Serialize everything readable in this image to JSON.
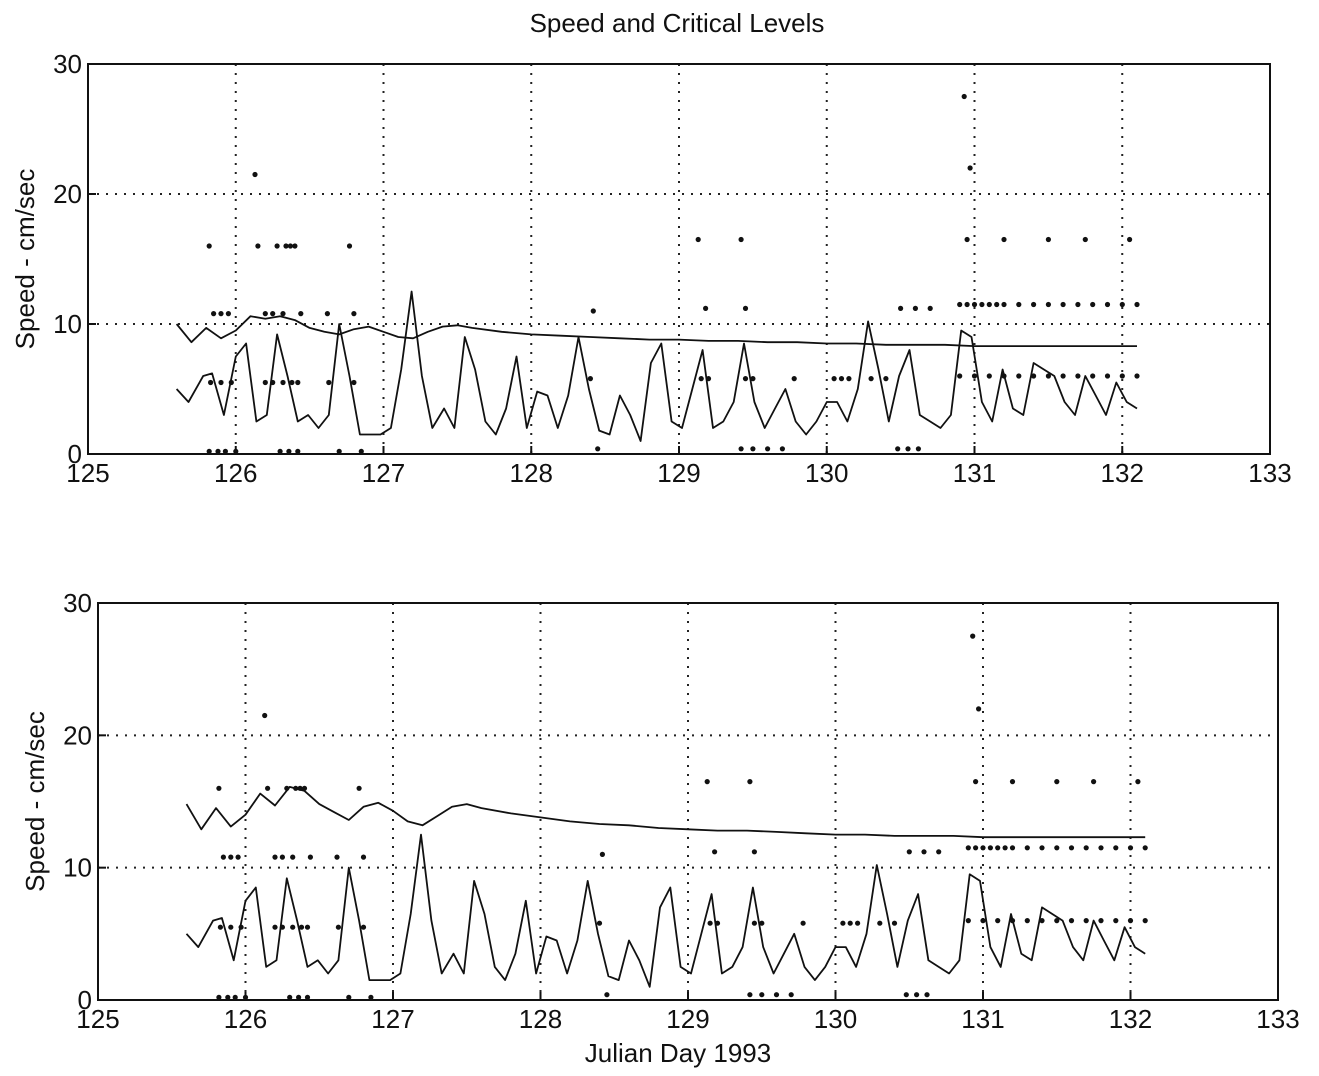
{
  "figure_title": "Speed and Critical Levels",
  "chart_data": [
    {
      "type": "line",
      "title": "Speed and Critical Levels",
      "xlabel": "",
      "ylabel": "Speed - cm/sec",
      "xlim": [
        125,
        133
      ],
      "ylim": [
        0,
        30
      ],
      "x_ticks": [
        "125",
        "126",
        "127",
        "128",
        "129",
        "130",
        "131",
        "132",
        "133"
      ],
      "y_ticks": [
        "0",
        "10",
        "20",
        "30"
      ],
      "grid": true,
      "series": [
        {
          "style": "line",
          "x": [
            125.6,
            125.7,
            125.8,
            125.9,
            126.0,
            126.1,
            126.2,
            126.3,
            126.4,
            126.5,
            126.6,
            126.7,
            126.8,
            126.9,
            127.0,
            127.1,
            127.2,
            127.3,
            127.4,
            127.5,
            127.6,
            127.8,
            128.0,
            128.2,
            128.4,
            128.6,
            128.8,
            129.0,
            129.2,
            129.4,
            129.6,
            129.8,
            130.0,
            130.2,
            130.4,
            130.6,
            130.8,
            131.0,
            131.2,
            131.4,
            131.6,
            131.8,
            132.0,
            132.1
          ],
          "y": [
            10.0,
            8.6,
            9.7,
            8.9,
            9.5,
            10.6,
            10.4,
            10.6,
            10.3,
            9.7,
            9.4,
            9.2,
            9.6,
            9.8,
            9.4,
            9.0,
            8.9,
            9.4,
            9.8,
            9.9,
            9.7,
            9.4,
            9.2,
            9.1,
            9.0,
            8.9,
            8.8,
            8.8,
            8.7,
            8.7,
            8.6,
            8.6,
            8.5,
            8.5,
            8.4,
            8.4,
            8.4,
            8.3,
            8.3,
            8.3,
            8.3,
            8.3,
            8.3,
            8.3
          ]
        },
        {
          "style": "line",
          "x": [
            125.6,
            125.68,
            125.78,
            125.84,
            125.92,
            126.0,
            126.07,
            126.14,
            126.21,
            126.28,
            126.35,
            126.42,
            126.49,
            126.56,
            126.63,
            126.7,
            126.77,
            126.84,
            126.91,
            126.98,
            127.05,
            127.12,
            127.19,
            127.26,
            127.33,
            127.41,
            127.48,
            127.55,
            127.62,
            127.69,
            127.76,
            127.83,
            127.9,
            127.97,
            128.04,
            128.11,
            128.18,
            128.25,
            128.32,
            128.39,
            128.46,
            128.53,
            128.6,
            128.67,
            128.74,
            128.81,
            128.88,
            128.95,
            129.02,
            129.09,
            129.16,
            129.23,
            129.3,
            129.37,
            129.44,
            129.51,
            129.58,
            129.65,
            129.72,
            129.79,
            129.86,
            129.93,
            130.0,
            130.07,
            130.14,
            130.21,
            130.28,
            130.35,
            130.42,
            130.49,
            130.56,
            130.63,
            130.7,
            130.77,
            130.84,
            130.91,
            130.98,
            131.05,
            131.12,
            131.19,
            131.26,
            131.33,
            131.4,
            131.47,
            131.54,
            131.61,
            131.68,
            131.75,
            131.82,
            131.89,
            131.96,
            132.03,
            132.1
          ],
          "y": [
            5.0,
            4.0,
            6.0,
            6.2,
            3.0,
            7.5,
            8.5,
            2.5,
            3.0,
            9.2,
            6.0,
            2.5,
            3.0,
            2.0,
            3.0,
            10.0,
            6.0,
            1.5,
            1.5,
            1.5,
            2.0,
            6.5,
            12.5,
            6.0,
            2.0,
            3.5,
            2.0,
            9.0,
            6.5,
            2.5,
            1.5,
            3.5,
            7.5,
            2.0,
            4.8,
            4.5,
            2.0,
            4.5,
            9.0,
            5.0,
            1.8,
            1.5,
            4.5,
            3.0,
            1.0,
            7.0,
            8.5,
            2.5,
            2.0,
            5.0,
            8.0,
            2.0,
            2.5,
            4.0,
            8.5,
            4.0,
            2.0,
            3.5,
            5.0,
            2.5,
            1.5,
            2.5,
            4.0,
            4.0,
            2.5,
            5.0,
            10.2,
            6.5,
            2.5,
            6.0,
            8.0,
            3.0,
            2.5,
            2.0,
            3.0,
            9.5,
            9.0,
            4.0,
            2.5,
            6.5,
            3.5,
            3.0,
            7.0,
            6.5,
            6.0,
            4.0,
            3.0,
            6.0,
            4.5,
            3.0,
            5.5,
            4.0,
            3.5
          ]
        },
        {
          "style": "dots",
          "x": [
            125.82,
            125.85,
            125.9,
            125.95,
            125.83,
            125.9,
            125.97,
            125.82,
            125.88,
            125.93,
            126.0,
            126.13,
            126.15,
            126.2,
            126.25,
            126.32,
            126.37,
            126.44,
            126.2,
            126.25,
            126.32,
            126.38,
            126.42,
            126.3,
            126.36,
            126.42,
            126.28,
            126.34,
            126.4,
            126.62,
            126.8,
            126.77,
            126.8,
            126.63,
            126.7,
            126.85,
            128.42,
            128.4,
            128.45,
            129.13,
            129.18,
            129.42,
            129.45,
            129.15,
            129.2,
            129.45,
            129.5,
            129.42,
            129.5,
            129.6,
            129.7,
            129.78,
            130.05,
            130.1,
            130.15,
            130.3,
            130.4,
            130.5,
            130.6,
            130.7,
            130.48,
            130.55,
            130.62,
            130.9,
            130.95,
            131.0,
            131.05,
            131.1,
            131.15,
            131.2,
            131.3,
            131.4,
            131.5,
            131.6,
            131.7,
            131.8,
            131.9,
            132.0,
            132.1,
            130.95,
            131.2,
            131.5,
            131.75,
            132.05,
            130.93,
            130.97,
            130.9,
            131.0,
            131.1,
            131.2,
            131.3,
            131.4,
            131.5,
            131.6,
            131.7,
            131.8,
            131.9,
            132.0,
            132.1
          ],
          "y": [
            16.0,
            10.8,
            10.8,
            10.8,
            5.5,
            5.5,
            5.5,
            0.2,
            0.2,
            0.2,
            0.2,
            21.5,
            16.0,
            10.8,
            10.8,
            10.8,
            16.0,
            10.8,
            5.5,
            5.5,
            5.5,
            5.5,
            5.5,
            0.2,
            0.2,
            0.2,
            16.0,
            16.0,
            16.0,
            10.8,
            10.8,
            16.0,
            5.5,
            5.5,
            0.2,
            0.2,
            11.0,
            5.8,
            0.4,
            16.5,
            11.2,
            16.5,
            11.2,
            5.8,
            5.8,
            5.8,
            5.8,
            0.4,
            0.4,
            0.4,
            0.4,
            5.8,
            5.8,
            5.8,
            5.8,
            5.8,
            5.8,
            11.2,
            11.2,
            11.2,
            0.4,
            0.4,
            0.4,
            11.5,
            11.5,
            11.5,
            11.5,
            11.5,
            11.5,
            11.5,
            11.5,
            11.5,
            11.5,
            11.5,
            11.5,
            11.5,
            11.5,
            11.5,
            11.5,
            16.5,
            16.5,
            16.5,
            16.5,
            16.5,
            27.5,
            22.0,
            6.0,
            6.0,
            6.0,
            6.0,
            6.0,
            6.0,
            6.0,
            6.0,
            6.0,
            6.0,
            6.0,
            6.0,
            6.0
          ]
        }
      ]
    },
    {
      "type": "line",
      "title": "",
      "xlabel": "Julian Day 1993",
      "ylabel": "Speed - cm/sec",
      "xlim": [
        125,
        133
      ],
      "ylim": [
        0,
        30
      ],
      "x_ticks": [
        "125",
        "126",
        "127",
        "128",
        "129",
        "130",
        "131",
        "132",
        "133"
      ],
      "y_ticks": [
        "0",
        "10",
        "20",
        "30"
      ],
      "grid": true,
      "series": [
        {
          "style": "line",
          "x": [
            125.6,
            125.7,
            125.8,
            125.9,
            126.0,
            126.1,
            126.2,
            126.3,
            126.4,
            126.5,
            126.6,
            126.7,
            126.8,
            126.9,
            127.0,
            127.1,
            127.2,
            127.3,
            127.4,
            127.5,
            127.6,
            127.8,
            128.0,
            128.2,
            128.4,
            128.6,
            128.8,
            129.0,
            129.2,
            129.4,
            129.6,
            129.8,
            130.0,
            130.2,
            130.4,
            130.6,
            130.8,
            131.0,
            131.2,
            131.4,
            131.6,
            131.8,
            132.0,
            132.1
          ],
          "y": [
            14.8,
            12.9,
            14.5,
            13.1,
            14.0,
            15.6,
            14.7,
            16.1,
            15.8,
            14.8,
            14.2,
            13.6,
            14.6,
            14.9,
            14.3,
            13.5,
            13.2,
            13.9,
            14.6,
            14.8,
            14.5,
            14.1,
            13.8,
            13.5,
            13.3,
            13.2,
            13.0,
            12.9,
            12.8,
            12.8,
            12.7,
            12.6,
            12.5,
            12.5,
            12.4,
            12.4,
            12.4,
            12.3,
            12.3,
            12.3,
            12.3,
            12.3,
            12.3,
            12.3
          ]
        },
        {
          "style": "line",
          "x": [
            125.6,
            125.68,
            125.78,
            125.84,
            125.92,
            126.0,
            126.07,
            126.14,
            126.21,
            126.28,
            126.35,
            126.42,
            126.49,
            126.56,
            126.63,
            126.7,
            126.77,
            126.84,
            126.91,
            126.98,
            127.05,
            127.12,
            127.19,
            127.26,
            127.33,
            127.41,
            127.48,
            127.55,
            127.62,
            127.69,
            127.76,
            127.83,
            127.9,
            127.97,
            128.04,
            128.11,
            128.18,
            128.25,
            128.32,
            128.39,
            128.46,
            128.53,
            128.6,
            128.67,
            128.74,
            128.81,
            128.88,
            128.95,
            129.02,
            129.09,
            129.16,
            129.23,
            129.3,
            129.37,
            129.44,
            129.51,
            129.58,
            129.65,
            129.72,
            129.79,
            129.86,
            129.93,
            130.0,
            130.07,
            130.14,
            130.21,
            130.28,
            130.35,
            130.42,
            130.49,
            130.56,
            130.63,
            130.7,
            130.77,
            130.84,
            130.91,
            130.98,
            131.05,
            131.12,
            131.19,
            131.26,
            131.33,
            131.4,
            131.47,
            131.54,
            131.61,
            131.68,
            131.75,
            131.82,
            131.89,
            131.96,
            132.03,
            132.1
          ],
          "y": [
            5.0,
            4.0,
            6.0,
            6.2,
            3.0,
            7.5,
            8.5,
            2.5,
            3.0,
            9.2,
            6.0,
            2.5,
            3.0,
            2.0,
            3.0,
            10.0,
            6.0,
            1.5,
            1.5,
            1.5,
            2.0,
            6.5,
            12.5,
            6.0,
            2.0,
            3.5,
            2.0,
            9.0,
            6.5,
            2.5,
            1.5,
            3.5,
            7.5,
            2.0,
            4.8,
            4.5,
            2.0,
            4.5,
            9.0,
            5.0,
            1.8,
            1.5,
            4.5,
            3.0,
            1.0,
            7.0,
            8.5,
            2.5,
            2.0,
            5.0,
            8.0,
            2.0,
            2.5,
            4.0,
            8.5,
            4.0,
            2.0,
            3.5,
            5.0,
            2.5,
            1.5,
            2.5,
            4.0,
            4.0,
            2.5,
            5.0,
            10.2,
            6.5,
            2.5,
            6.0,
            8.0,
            3.0,
            2.5,
            2.0,
            3.0,
            9.5,
            9.0,
            4.0,
            2.5,
            6.5,
            3.5,
            3.0,
            7.0,
            6.5,
            6.0,
            4.0,
            3.0,
            6.0,
            4.5,
            3.0,
            5.5,
            4.0,
            3.5
          ]
        },
        {
          "style": "dots",
          "x": [
            125.82,
            125.85,
            125.9,
            125.95,
            125.83,
            125.9,
            125.97,
            125.82,
            125.88,
            125.93,
            126.0,
            126.13,
            126.15,
            126.2,
            126.25,
            126.32,
            126.37,
            126.44,
            126.2,
            126.25,
            126.32,
            126.38,
            126.42,
            126.3,
            126.36,
            126.42,
            126.28,
            126.34,
            126.4,
            126.62,
            126.8,
            126.77,
            126.8,
            126.63,
            126.7,
            126.85,
            128.42,
            128.4,
            128.45,
            129.13,
            129.18,
            129.42,
            129.45,
            129.15,
            129.2,
            129.45,
            129.5,
            129.42,
            129.5,
            129.6,
            129.7,
            129.78,
            130.05,
            130.1,
            130.15,
            130.3,
            130.4,
            130.5,
            130.6,
            130.7,
            130.48,
            130.55,
            130.62,
            130.9,
            130.95,
            131.0,
            131.05,
            131.1,
            131.15,
            131.2,
            131.3,
            131.4,
            131.5,
            131.6,
            131.7,
            131.8,
            131.9,
            132.0,
            132.1,
            130.95,
            131.2,
            131.5,
            131.75,
            132.05,
            130.93,
            130.97,
            130.9,
            131.0,
            131.1,
            131.2,
            131.3,
            131.4,
            131.5,
            131.6,
            131.7,
            131.8,
            131.9,
            132.0,
            132.1
          ],
          "y": [
            16.0,
            10.8,
            10.8,
            10.8,
            5.5,
            5.5,
            5.5,
            0.2,
            0.2,
            0.2,
            0.2,
            21.5,
            16.0,
            10.8,
            10.8,
            10.8,
            16.0,
            10.8,
            5.5,
            5.5,
            5.5,
            5.5,
            5.5,
            0.2,
            0.2,
            0.2,
            16.0,
            16.0,
            16.0,
            10.8,
            10.8,
            16.0,
            5.5,
            5.5,
            0.2,
            0.2,
            11.0,
            5.8,
            0.4,
            16.5,
            11.2,
            16.5,
            11.2,
            5.8,
            5.8,
            5.8,
            5.8,
            0.4,
            0.4,
            0.4,
            0.4,
            5.8,
            5.8,
            5.8,
            5.8,
            5.8,
            5.8,
            11.2,
            11.2,
            11.2,
            0.4,
            0.4,
            0.4,
            11.5,
            11.5,
            11.5,
            11.5,
            11.5,
            11.5,
            11.5,
            11.5,
            11.5,
            11.5,
            11.5,
            11.5,
            11.5,
            11.5,
            11.5,
            11.5,
            16.5,
            16.5,
            16.5,
            16.5,
            16.5,
            27.5,
            22.0,
            6.0,
            6.0,
            6.0,
            6.0,
            6.0,
            6.0,
            6.0,
            6.0,
            6.0,
            6.0,
            6.0,
            6.0,
            6.0
          ]
        }
      ]
    }
  ]
}
